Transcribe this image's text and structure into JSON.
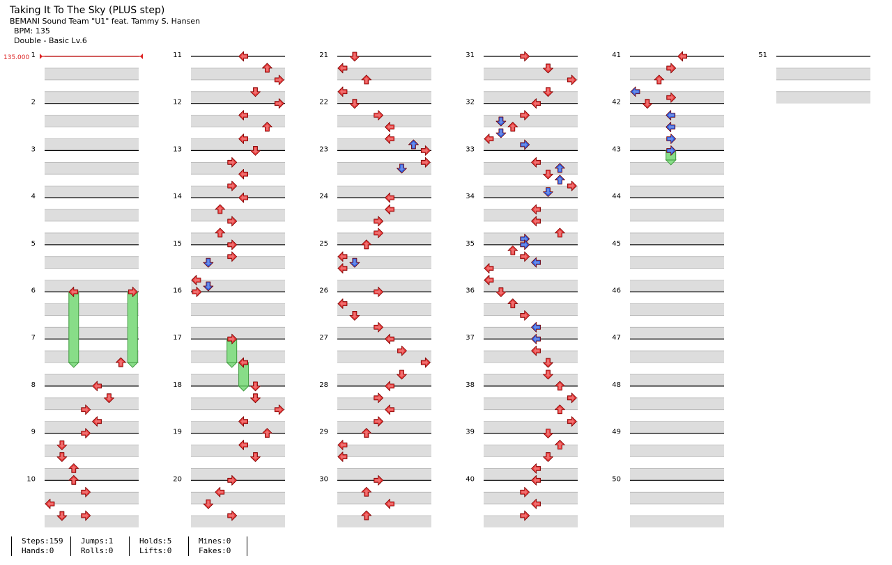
{
  "song": {
    "title": "Taking It To The Sky (PLUS step)",
    "artist": "BEMANI Sound Team \"U1\" feat. Tammy S. Hansen",
    "bpm_label": "BPM: 135",
    "chart_label": "Double - Basic Lv.6"
  },
  "bpm_marker": {
    "value": "135.000",
    "color": "#dd2222"
  },
  "colors": {
    "tap_4th": "#e83a3a",
    "tap_8th": "#2f5fe0",
    "hold": "#88dd88",
    "lane_dark": "#dddddd"
  },
  "stats": {
    "steps": "Steps:159",
    "hands": "Hands:0",
    "jumps": "Jumps:1",
    "rolls": "Rolls:0",
    "holds": "Holds:5",
    "lifts": "Lifts:0",
    "mines": "Mines:0",
    "fakes": "Fakes:0"
  },
  "chart_data": {
    "type": "step-chart",
    "mode": "Double",
    "columns": 8,
    "measures": 51,
    "note_legend": {
      "red": "quarter note",
      "blue": "eighth note",
      "green": "hold"
    },
    "notes": [
      [
        6,
        0,
        2,
        "L",
        4,
        7.5
      ],
      [
        6,
        0,
        7,
        "R",
        4,
        7.5
      ],
      [
        7,
        2,
        6,
        "U",
        4
      ],
      [
        8,
        0,
        4,
        "L",
        4
      ],
      [
        8,
        1,
        5,
        "D",
        4
      ],
      [
        8,
        2,
        3,
        "R",
        4
      ],
      [
        8,
        3,
        4,
        "L",
        4
      ],
      [
        9,
        0,
        3,
        "R",
        4
      ],
      [
        9,
        1,
        1,
        "D",
        4
      ],
      [
        9,
        2,
        1,
        "D",
        4
      ],
      [
        9,
        3,
        2,
        "U",
        4
      ],
      [
        10,
        0,
        2,
        "U",
        4
      ],
      [
        10,
        1,
        3,
        "R",
        4
      ],
      [
        10,
        2,
        0,
        "L",
        4
      ],
      [
        10,
        3,
        1,
        "D",
        4
      ],
      [
        10.5,
        1,
        3,
        "R",
        4
      ],
      [
        11,
        0,
        4,
        "L",
        4
      ],
      [
        11,
        1,
        6,
        "U",
        4
      ],
      [
        11,
        2,
        7,
        "R",
        4
      ],
      [
        11,
        3,
        5,
        "D",
        4
      ],
      [
        12,
        0,
        7,
        "R",
        4
      ],
      [
        12,
        1,
        4,
        "L",
        4
      ],
      [
        12,
        2,
        6,
        "U",
        4
      ],
      [
        12,
        3,
        4,
        "L",
        4
      ],
      [
        13,
        0,
        5,
        "D",
        4
      ],
      [
        13,
        1,
        3,
        "R",
        4
      ],
      [
        13,
        2,
        4,
        "L",
        4
      ],
      [
        13,
        3,
        3,
        "R",
        4
      ],
      [
        14,
        0,
        4,
        "L",
        4
      ],
      [
        14,
        1,
        2,
        "U",
        4
      ],
      [
        14,
        2,
        3,
        "R",
        4
      ],
      [
        14,
        3,
        2,
        "U",
        4
      ],
      [
        15,
        0,
        3,
        "R",
        4
      ],
      [
        15,
        1,
        3,
        "R",
        4
      ],
      [
        15,
        1.5,
        1,
        "D",
        8
      ],
      [
        15,
        3,
        0,
        "L",
        4
      ],
      [
        15,
        3.5,
        1,
        "D",
        8
      ],
      [
        16,
        0,
        0,
        "R",
        4
      ],
      [
        17,
        0,
        3,
        "R",
        4,
        17.5
      ],
      [
        17,
        2,
        4,
        "L",
        4,
        18
      ],
      [
        18,
        0,
        5,
        "D",
        4
      ],
      [
        18,
        1,
        5,
        "D",
        4
      ],
      [
        18,
        2,
        7,
        "R",
        4
      ],
      [
        18,
        3,
        4,
        "L",
        4
      ],
      [
        19,
        0,
        6,
        "U",
        4
      ],
      [
        19,
        1,
        4,
        "L",
        4
      ],
      [
        19,
        2,
        5,
        "D",
        4
      ],
      [
        20,
        0,
        3,
        "R",
        4
      ],
      [
        20,
        1,
        2,
        "L",
        4
      ],
      [
        20,
        2,
        1,
        "D",
        4
      ],
      [
        20,
        3,
        3,
        "R",
        4
      ],
      [
        21,
        0,
        1,
        "D",
        4
      ],
      [
        21,
        1,
        0,
        "L",
        4
      ],
      [
        21,
        2,
        2,
        "U",
        4
      ],
      [
        21,
        3,
        0,
        "L",
        4
      ],
      [
        22,
        0,
        1,
        "D",
        4
      ],
      [
        22,
        1,
        3,
        "R",
        4
      ],
      [
        22,
        2,
        4,
        "L",
        4
      ],
      [
        22,
        3,
        4,
        "L",
        4
      ],
      [
        22,
        3.5,
        6,
        "U",
        8
      ],
      [
        23,
        0,
        7,
        "R",
        4
      ],
      [
        23,
        1,
        7,
        "R",
        4
      ],
      [
        23,
        1.5,
        5,
        "D",
        8
      ],
      [
        24,
        0,
        4,
        "L",
        4
      ],
      [
        24,
        1,
        4,
        "L",
        4
      ],
      [
        24,
        2,
        3,
        "R",
        4
      ],
      [
        24,
        3,
        3,
        "R",
        4
      ],
      [
        25,
        0,
        2,
        "U",
        4
      ],
      [
        25,
        1,
        0,
        "L",
        4
      ],
      [
        25,
        2,
        0,
        "L",
        4
      ],
      [
        25,
        1.5,
        1,
        "D",
        8
      ],
      [
        26,
        0,
        3,
        "R",
        4
      ],
      [
        26,
        1,
        0,
        "L",
        4
      ],
      [
        26,
        2,
        1,
        "D",
        4
      ],
      [
        26,
        3,
        3,
        "R",
        4
      ],
      [
        27,
        0,
        4,
        "L",
        4
      ],
      [
        27,
        1,
        5,
        "R",
        4
      ],
      [
        27,
        2,
        7,
        "R",
        4
      ],
      [
        27,
        3,
        5,
        "D",
        4
      ],
      [
        28,
        0,
        4,
        "L",
        4
      ],
      [
        28,
        1,
        3,
        "R",
        4
      ],
      [
        28,
        2,
        4,
        "L",
        4
      ],
      [
        28,
        3,
        3,
        "R",
        4
      ],
      [
        29,
        0,
        2,
        "U",
        4
      ],
      [
        29,
        0,
        2,
        "U",
        4
      ],
      [
        29,
        1,
        0,
        "L",
        4
      ],
      [
        29,
        2,
        0,
        "L",
        4
      ],
      [
        30,
        0,
        3,
        "R",
        4
      ],
      [
        30,
        1,
        2,
        "U",
        4
      ],
      [
        30,
        2,
        4,
        "L",
        4
      ],
      [
        30,
        3,
        2,
        "U",
        4
      ],
      [
        31,
        0,
        3,
        "R",
        4
      ],
      [
        31,
        1,
        5,
        "D",
        4
      ],
      [
        31,
        2,
        7,
        "R",
        4
      ],
      [
        31,
        3,
        5,
        "D",
        4
      ],
      [
        32,
        0,
        4,
        "L",
        4
      ],
      [
        32,
        1,
        3,
        "R",
        4
      ],
      [
        32,
        2,
        2,
        "U",
        4
      ],
      [
        32,
        3,
        0,
        "L",
        4
      ],
      [
        32,
        1.5,
        1,
        "D",
        8
      ],
      [
        32,
        2.5,
        1,
        "D",
        8
      ],
      [
        32,
        3.5,
        3,
        "R",
        8
      ],
      [
        33,
        1,
        4,
        "L",
        4
      ],
      [
        33,
        2,
        5,
        "D",
        4
      ],
      [
        33,
        3,
        7,
        "R",
        4
      ],
      [
        33,
        1.5,
        6,
        "U",
        8
      ],
      [
        33,
        2.5,
        6,
        "U",
        8
      ],
      [
        33,
        3.5,
        5,
        "D",
        8
      ],
      [
        34,
        1,
        4,
        "L",
        4
      ],
      [
        34,
        2,
        4,
        "L",
        4
      ],
      [
        34,
        3,
        6,
        "U",
        4
      ],
      [
        34,
        3.5,
        3,
        "R",
        8
      ],
      [
        35,
        0,
        3,
        "R",
        8
      ],
      [
        35,
        1.5,
        4,
        "L",
        8
      ],
      [
        35,
        0.5,
        2,
        "U",
        4
      ],
      [
        35,
        1,
        3,
        "R",
        4
      ],
      [
        35,
        2,
        0,
        "L",
        4
      ],
      [
        35,
        3,
        0,
        "L",
        4
      ],
      [
        36,
        0,
        1,
        "D",
        4
      ],
      [
        36,
        1,
        2,
        "U",
        4
      ],
      [
        36,
        2,
        3,
        "R",
        4
      ],
      [
        36,
        3,
        4,
        "L",
        4
      ],
      [
        36,
        3,
        4,
        "L",
        8
      ],
      [
        37,
        0,
        4,
        "L",
        8
      ],
      [
        37,
        1,
        4,
        "L",
        4
      ],
      [
        37,
        2,
        5,
        "D",
        4
      ],
      [
        37,
        3,
        5,
        "D",
        4
      ],
      [
        38,
        0,
        6,
        "U",
        4
      ],
      [
        38,
        1,
        7,
        "R",
        4
      ],
      [
        38,
        2,
        6,
        "U",
        4
      ],
      [
        38,
        3,
        7,
        "R",
        4
      ],
      [
        39,
        0,
        5,
        "D",
        4
      ],
      [
        39,
        1,
        6,
        "U",
        4
      ],
      [
        39,
        2,
        5,
        "D",
        4
      ],
      [
        39,
        3,
        4,
        "L",
        4
      ],
      [
        40,
        0,
        4,
        "L",
        4
      ],
      [
        40,
        1,
        3,
        "R",
        4
      ],
      [
        40,
        2,
        4,
        "L",
        4
      ],
      [
        40,
        3,
        3,
        "R",
        4
      ],
      [
        41,
        0,
        4,
        "L",
        4
      ],
      [
        41,
        1,
        3,
        "R",
        4
      ],
      [
        41,
        2,
        2,
        "U",
        4
      ],
      [
        41,
        3,
        0,
        "L",
        8
      ],
      [
        41,
        3.5,
        3,
        "R",
        4
      ],
      [
        42,
        0,
        1,
        "D",
        4
      ],
      [
        42,
        1,
        3,
        "L",
        8
      ],
      [
        42,
        2,
        3,
        "L",
        8
      ],
      [
        42,
        3,
        3,
        "R",
        8
      ],
      [
        43,
        0,
        3,
        "R",
        8,
        43.2
      ]
    ]
  }
}
